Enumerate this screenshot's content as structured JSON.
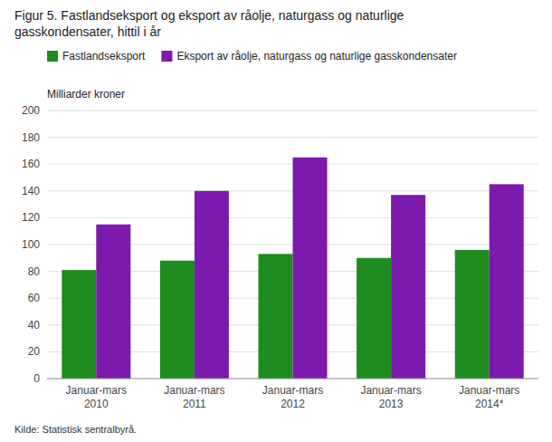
{
  "chart_data": {
    "type": "bar",
    "title": "Figur 5. Fastlandseksport og eksport av råolje, naturgass og naturlige\ngasskondensater, hittil i år",
    "y_label": "Milliarder kroner",
    "annotations": [
      "Kilde: Statistisk sentralbyrå."
    ],
    "categories": [
      "Januar-mars\n2010",
      "Januar-mars\n2011",
      "Januar-mars\n2012",
      "Januar-mars\n2013",
      "Januar-mars\n2014*"
    ],
    "series": [
      {
        "name": "Fastlandseksport",
        "color": "#1e8c1e",
        "values": [
          81,
          88,
          93,
          90,
          96
        ]
      },
      {
        "name": "Eksport av råolje, naturgass og naturlige gasskondensater",
        "color": "#7b1aac",
        "values": [
          115,
          140,
          165,
          137,
          145
        ]
      }
    ],
    "ylim": [
      0,
      200
    ],
    "yticks": [
      0,
      20,
      40,
      60,
      80,
      100,
      120,
      140,
      160,
      180,
      200
    ],
    "grid": true,
    "legend": "upper left"
  }
}
